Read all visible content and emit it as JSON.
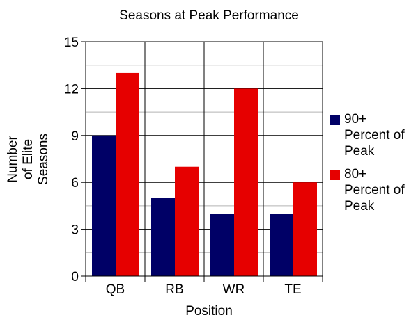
{
  "chart_data": {
    "type": "bar",
    "title": "Seasons at Peak Performance",
    "xlabel": "Position",
    "ylabel": "Number of Elite Seasons",
    "ylabel_lines": [
      "Number",
      "of Elite",
      "Seasons"
    ],
    "categories": [
      "QB",
      "RB",
      "WR",
      "TE"
    ],
    "ylim": [
      0,
      15
    ],
    "yticks": [
      0,
      3,
      6,
      9,
      12,
      15
    ],
    "grid": true,
    "legend_position": "right",
    "series": [
      {
        "name": "90+ Percent of Peak",
        "color": "#000066",
        "values": [
          9,
          5,
          4,
          4
        ]
      },
      {
        "name": "80+ Percent of Peak",
        "color": "#e60000",
        "values": [
          13,
          7,
          12,
          6
        ]
      }
    ]
  }
}
